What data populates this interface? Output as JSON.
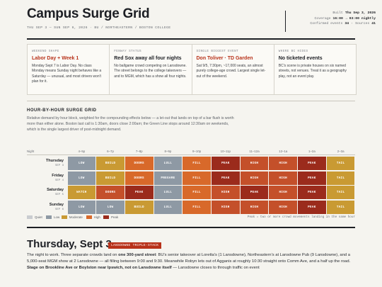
{
  "header": {
    "title": "Campus Surge Grid",
    "subtitle": "THU SEP 3 — SUN SEP 6, 2026 · BU / NORTHEASTERN / BOSTON COLLEGE",
    "separator": "·",
    "meta": [
      [
        {
          "label": "Built",
          "value": "Thu Sep 3, 2026"
        }
      ],
      [
        {
          "label": "Coverage",
          "value": "16:00 → 03:00 nightly"
        }
      ],
      [
        {
          "label": "Confirmed events",
          "value": "34"
        },
        {
          "label": "Sources",
          "value": "41"
        }
      ]
    ]
  },
  "cards": [
    {
      "kicker": "WEEKEND SHAPE",
      "headline": "Labor Day + Week 1",
      "highlight": true,
      "body": "Monday Sept 7 is Labor Day. No class Monday means Sunday night behaves like a Saturday — unusual, and most drivers won't plan for it."
    },
    {
      "kicker": "FENWAY STATUS",
      "headline": "Red Sox away all four nights",
      "highlight": false,
      "body": "No ballgame crowd competing on Lansdowne. The street belongs to the college takeovers — and to MGM, which has a show all four nights."
    },
    {
      "kicker": "SINGLE BIGGEST EVENT",
      "headline": "Don Toliver · TD Garden",
      "highlight": true,
      "body": "Sat 9/5, 7:30pm, ~17,000 seats, an almost purely college-age crowd. Largest single let-out of the weekend."
    },
    {
      "kicker": "WHERE BC HIDES",
      "headline": "No ticketed events",
      "highlight": false,
      "body": "BC's scene is private houses on six named streets, not venues. Treat it as a geography play, not an event play."
    }
  ],
  "grid": {
    "heading": "HOUR-BY-HOUR SURGE GRID",
    "description": "Relative demand by hour block, weighted for the compounding effects below — a let-out that lands on top of a bar flush is worth more than either alone. Boston last call is 1:30am, doors close 2:00am; the Green Line stops around 12:30am on weekends, which is the single largest driver of post-midnight demand.",
    "columns": [
      "Night",
      "4–5p",
      "6–7p",
      "7–8p",
      "8–9p",
      "9–10p",
      "10–11p",
      "11–12a",
      "12–1a",
      "1–2a",
      "2–3a"
    ],
    "rows": [
      {
        "day": "Thursday",
        "date": "SEP 3",
        "cells": [
          {
            "label": "LOW",
            "color": "#8e99a4"
          },
          {
            "label": "BUILD",
            "color": "#c99a33"
          },
          {
            "label": "DOORS",
            "color": "#d8692a"
          },
          {
            "label": "LULL",
            "color": "#8e99a4"
          },
          {
            "label": "FILL",
            "color": "#d8692a"
          },
          {
            "label": "PEAK",
            "color": "#9b2b1c"
          },
          {
            "label": "HIGH",
            "color": "#c4502a"
          },
          {
            "label": "HIGH",
            "color": "#c4502a"
          },
          {
            "label": "PEAK",
            "color": "#9b2b1c"
          },
          {
            "label": "TAIL",
            "color": "#c99a33"
          }
        ]
      },
      {
        "day": "Friday",
        "date": "SEP 4",
        "cells": [
          {
            "label": "LOW",
            "color": "#8e99a4"
          },
          {
            "label": "BUILD",
            "color": "#c99a33"
          },
          {
            "label": "DOORS",
            "color": "#d8692a"
          },
          {
            "label": "PREGAME",
            "color": "#8e99a4"
          },
          {
            "label": "FILL",
            "color": "#d8692a"
          },
          {
            "label": "PEAK",
            "color": "#9b2b1c"
          },
          {
            "label": "HIGH",
            "color": "#c4502a"
          },
          {
            "label": "HIGH",
            "color": "#c4502a"
          },
          {
            "label": "PEAK",
            "color": "#9b2b1c"
          },
          {
            "label": "TAIL",
            "color": "#c99a33"
          }
        ]
      },
      {
        "day": "Saturday",
        "date": "SEP 5",
        "cells": [
          {
            "label": "WATCH",
            "color": "#c99a33"
          },
          {
            "label": "DOORS",
            "color": "#c4502a"
          },
          {
            "label": "PEAK",
            "color": "#9b2b1c"
          },
          {
            "label": "LULL",
            "color": "#8e99a4"
          },
          {
            "label": "FILL",
            "color": "#d8692a"
          },
          {
            "label": "HIGH",
            "color": "#c4502a"
          },
          {
            "label": "PEAK",
            "color": "#9b2b1c"
          },
          {
            "label": "HIGH",
            "color": "#c4502a"
          },
          {
            "label": "PEAK",
            "color": "#9b2b1c"
          },
          {
            "label": "TAIL",
            "color": "#c99a33"
          }
        ]
      },
      {
        "day": "Sunday",
        "date": "SEP 6",
        "cells": [
          {
            "label": "LOW",
            "color": "#8e99a4"
          },
          {
            "label": "LOW",
            "color": "#8e99a4"
          },
          {
            "label": "BUILD",
            "color": "#c99a33"
          },
          {
            "label": "LULL",
            "color": "#8e99a4"
          },
          {
            "label": "FILL",
            "color": "#d8692a"
          },
          {
            "label": "HIGH",
            "color": "#c4502a"
          },
          {
            "label": "HIGH",
            "color": "#c4502a"
          },
          {
            "label": "HIGH",
            "color": "#c4502a"
          },
          {
            "label": "PEAK",
            "color": "#9b2b1c"
          },
          {
            "label": "TAIL",
            "color": "#c99a33"
          }
        ]
      }
    ],
    "legend": [
      {
        "name": "Quiet",
        "color": "#c9ccd0"
      },
      {
        "name": "Low",
        "color": "#8e99a4"
      },
      {
        "name": "Moderate",
        "color": "#c99a33"
      },
      {
        "name": "High",
        "color": "#d8692a"
      },
      {
        "name": "Peak",
        "color": "#9b2b1c"
      }
    ],
    "note": "Peak = two or more crowd movements landing in the same hour"
  },
  "day": {
    "title": "Thursday, Sept 3",
    "tag": "LANSDOWNE TRIPLE-STACK",
    "paragraph": [
      {
        "text": "The night to work. Three separate crowds land on ",
        "bold": false
      },
      {
        "text": "one 300-yard street",
        "bold": true
      },
      {
        "text": ": BU's senior takeover at Loretta's (1 Lansdowne), Northeastern's at Lansdowne Pub (9 Lansdowne), and a 5,000-seat MGM show at 2 Lansdowne — all filling between 9:00 and 9:30. Meanwhile Robyn lets out of Agganis at roughly 10:30 straight onto Comm Ave, and a half up the road. ",
        "bold": false
      },
      {
        "text": "Stage on Brookline Ave or Boylston near Ipswich, not on Lansdowne itself",
        "bold": true
      },
      {
        "text": " — Lansdowne closes to through traffic on event",
        "bold": false
      }
    ]
  }
}
